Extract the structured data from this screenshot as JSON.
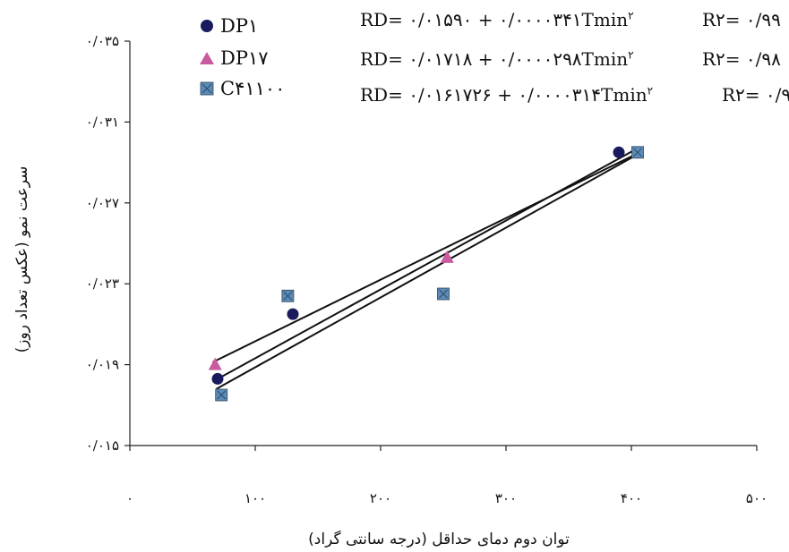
{
  "chart_data": {
    "type": "scatter",
    "xlabel": "توان دوم دمای حداقل (درجه سانتی گراد)",
    "ylabel": "سرعت نمو (عکس تعداد روز)",
    "xlim": [
      0,
      500
    ],
    "ylim": [
      0.015,
      0.035
    ],
    "x_tick_values": [
      0,
      100,
      200,
      300,
      400,
      500
    ],
    "x_tick_labels": [
      "۰",
      "۱۰۰",
      "۲۰۰",
      "۳۰۰",
      "۴۰۰",
      "۵۰۰"
    ],
    "y_tick_values": [
      0.015,
      0.019,
      0.023,
      0.027,
      0.031,
      0.035
    ],
    "y_tick_labels": [
      "۰/۰۱۵",
      "۰/۰۱۹",
      "۰/۰۲۳",
      "۰/۰۲۷",
      "۰/۰۳۱",
      "۰/۰۳۵"
    ],
    "grid": false,
    "legend_position": "top-left",
    "series": [
      {
        "name": "DP۱",
        "marker": "circle",
        "color": "#1a1a5e",
        "points": [
          [
            70,
            0.0183
          ],
          [
            130,
            0.0215
          ],
          [
            390,
            0.0295
          ]
        ],
        "trend": [
          [
            66,
            0.01816
          ],
          [
            405,
            0.0297
          ]
        ],
        "equation": "RD= ۰/۰۱۵۹۰ + ۰/۰۰۰۰۳۴۱Tmin",
        "r2": "R۲= ۰/۹۹"
      },
      {
        "name": "DP۱۷",
        "marker": "triangle",
        "color": "#c85a9e",
        "points": [
          [
            68,
            0.019
          ],
          [
            253,
            0.0243
          ]
        ],
        "trend": [
          [
            66,
            0.01912
          ],
          [
            405,
            0.02945
          ]
        ],
        "equation": "RD= ۰/۰۱۷۱۸ + ۰/۰۰۰۰۲۹۸Tmin",
        "r2": "R۲= ۰/۹۸"
      },
      {
        "name": "C۴۱۱۰۰",
        "marker": "square",
        "color": "#5b8bb8",
        "points": [
          [
            73,
            0.0175
          ],
          [
            126,
            0.0224
          ],
          [
            250,
            0.0225
          ],
          [
            405,
            0.0295
          ]
        ],
        "trend": [
          [
            69,
            0.0178
          ],
          [
            405,
            0.0294
          ]
        ],
        "equation": "RD= ۰/۰۱۶۱۷۲۶ + ۰/۰۰۰۰۳۱۴Tmin",
        "r2": "R۲= ۰/۹"
      }
    ],
    "equation_superscript": "۲"
  }
}
